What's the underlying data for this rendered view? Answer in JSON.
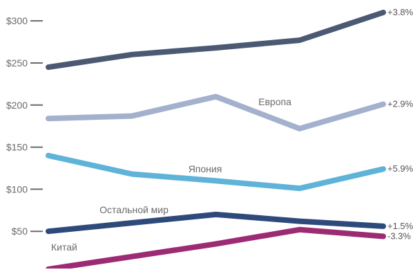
{
  "chart_data": {
    "type": "line",
    "title": "",
    "xlabel": "",
    "ylabel": "",
    "ylim": [
      0,
      310
    ],
    "grid": false,
    "y_ticks": [
      {
        "value": 300,
        "label": "$300"
      },
      {
        "value": 250,
        "label": "$250"
      },
      {
        "value": 200,
        "label": "$200"
      },
      {
        "value": 150,
        "label": "$150"
      },
      {
        "value": 100,
        "label": "$100"
      },
      {
        "value": 50,
        "label": "$50"
      }
    ],
    "series": [
      {
        "id": "s1",
        "name": "",
        "color": "#4b5a72",
        "values": [
          245,
          260,
          268,
          277,
          310
        ],
        "end_label": "+3.8%"
      },
      {
        "id": "s2",
        "name": "Европа",
        "color": "#a3b1cd",
        "values": [
          184,
          187,
          210,
          172,
          201
        ],
        "end_label": "+2.9%"
      },
      {
        "id": "s3",
        "name": "Япония",
        "color": "#5fb3d8",
        "values": [
          140,
          118,
          110,
          101,
          124
        ],
        "end_label": "+5.9%"
      },
      {
        "id": "s4",
        "name": "Остальной мир",
        "color": "#2e4a7a",
        "values": [
          50,
          60,
          70,
          62,
          56
        ],
        "end_label": "+1.5%"
      },
      {
        "id": "s5",
        "name": "Китай",
        "color": "#9c2b74",
        "values": [
          5,
          20,
          35,
          52,
          44
        ],
        "end_label": "-3.3%"
      }
    ]
  }
}
